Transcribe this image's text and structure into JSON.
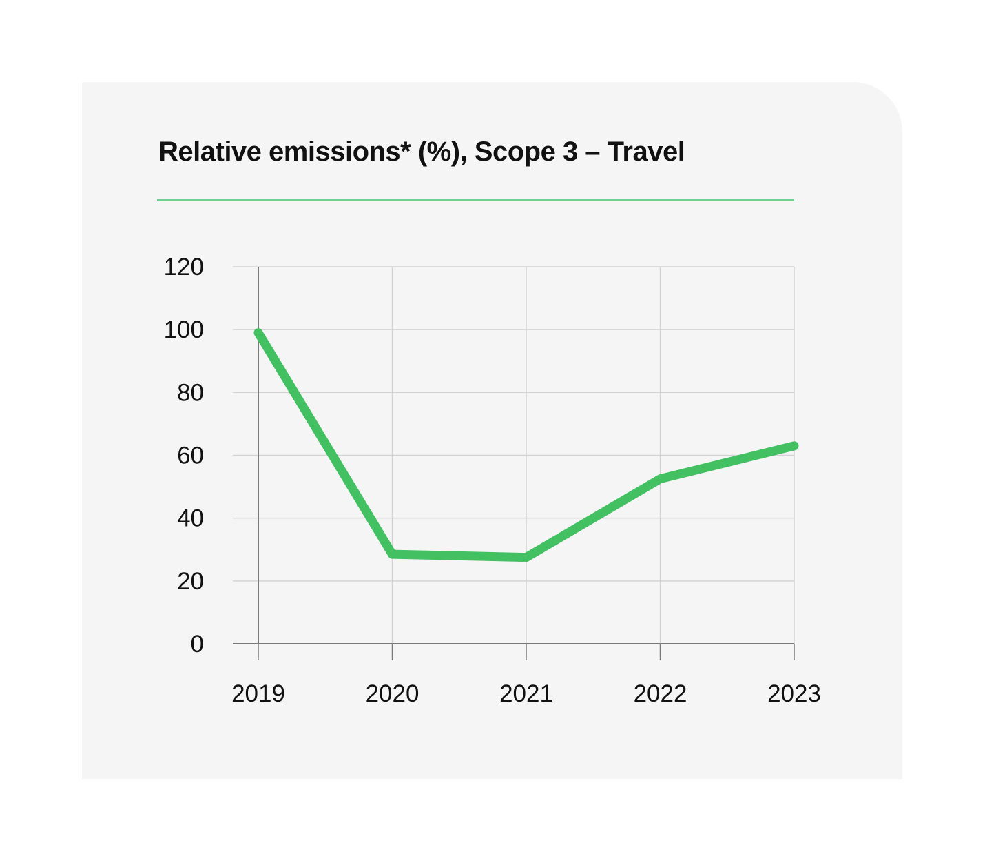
{
  "chart_data": {
    "type": "line",
    "title": "Relative emissions* (%), Scope 3 – Travel",
    "categories": [
      "2019",
      "2020",
      "2021",
      "2022",
      "2023"
    ],
    "series": [
      {
        "name": "Scope 3 – Travel",
        "values": [
          99,
          28.5,
          27.5,
          52.5,
          63
        ]
      }
    ],
    "yticks": [
      "0",
      "20",
      "40",
      "60",
      "80",
      "100",
      "120"
    ],
    "ylim": [
      0,
      120
    ],
    "xlabel": "",
    "ylabel": "",
    "grid": true,
    "line_color": "#43c062",
    "accent_color": "#6fcf8c"
  }
}
